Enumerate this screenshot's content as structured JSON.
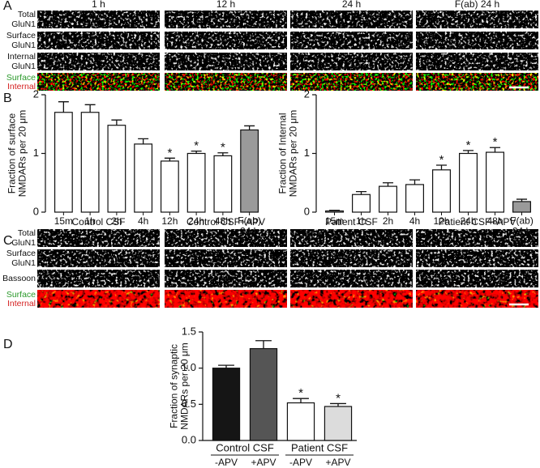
{
  "figure": {
    "panel_labels": [
      "A",
      "B",
      "C",
      "D"
    ],
    "panel_a": {
      "columns": [
        "1 h",
        "12 h",
        "24 h",
        "F(ab) 24 h"
      ],
      "row_labels": [
        "Total\nGluN1",
        "Surface\nGluN1",
        "Internal\nGluN1"
      ],
      "merge_labels": [
        "Surface",
        "Internal"
      ]
    },
    "panel_c": {
      "columns": [
        "Control CSF",
        "Control CSF+APV",
        "Patient CSF",
        "Patient CSF+APV"
      ],
      "row_labels": [
        "Total\nGluN1",
        "Surface\nGluN1",
        "Bassoon"
      ],
      "merge_labels": [
        "Surface",
        "Internal"
      ]
    }
  },
  "chart_data": [
    {
      "type": "bar",
      "ylabel": "Fraction of surface\nNMDARs per 20 μm",
      "categories": [
        "15m",
        "1h",
        "2h",
        "4h",
        "12h",
        "24h",
        "48h",
        "F(ab)\n24 h"
      ],
      "values": [
        1.7,
        1.7,
        1.48,
        1.16,
        0.87,
        1.0,
        0.96,
        1.4
      ],
      "errors": [
        0.18,
        0.13,
        0.09,
        0.09,
        0.05,
        0.04,
        0.05,
        0.07
      ],
      "colors": [
        "#ffffff",
        "#ffffff",
        "#ffffff",
        "#ffffff",
        "#ffffff",
        "#ffffff",
        "#ffffff",
        "#9a9a9a"
      ],
      "significance": [
        null,
        null,
        null,
        null,
        "*",
        "*",
        "*",
        null
      ],
      "ylim": [
        0,
        2
      ],
      "yticks": [
        0,
        1,
        2
      ]
    },
    {
      "type": "bar",
      "ylabel": "Fraction of Internal\nNMDARs per 20 μm",
      "categories": [
        "15m",
        "1h",
        "2h",
        "4h",
        "12h",
        "24h",
        "48h",
        "F(ab)\n24 h"
      ],
      "values": [
        0.02,
        0.3,
        0.44,
        0.47,
        0.72,
        1.0,
        1.02,
        0.18
      ],
      "errors": [
        0.01,
        0.05,
        0.06,
        0.08,
        0.08,
        0.05,
        0.08,
        0.04
      ],
      "colors": [
        "#ffffff",
        "#ffffff",
        "#ffffff",
        "#ffffff",
        "#ffffff",
        "#ffffff",
        "#ffffff",
        "#9a9a9a"
      ],
      "significance": [
        null,
        null,
        null,
        null,
        "*",
        "*",
        "*",
        null
      ],
      "ylim": [
        0,
        2
      ],
      "yticks": [
        0,
        1,
        2
      ]
    },
    {
      "type": "bar",
      "ylabel": "Fraction of synaptic\nNMDARs per 20 μm",
      "categories": [
        "-APV",
        "+APV",
        "-APV",
        "+APV"
      ],
      "groups": [
        "Control CSF",
        "Patient CSF"
      ],
      "values": [
        1.0,
        1.27,
        0.52,
        0.47
      ],
      "errors": [
        0.04,
        0.11,
        0.06,
        0.04
      ],
      "colors": [
        "#151515",
        "#555555",
        "#ffffff",
        "#dcdcdc"
      ],
      "significance": [
        null,
        null,
        "*",
        "*"
      ],
      "ylim": [
        0,
        1.5
      ],
      "yticks": [
        {
          "value": 0,
          "label": "0.0"
        },
        0.5,
        {
          "value": 1,
          "label": "1.0"
        },
        1.5
      ]
    }
  ]
}
